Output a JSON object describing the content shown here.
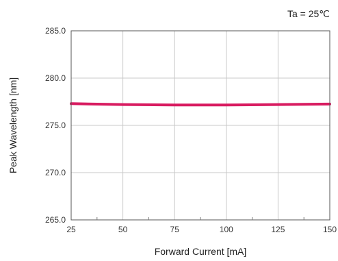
{
  "chart_data": {
    "type": "line",
    "title": "",
    "annotation": "Ta = 25℃",
    "xlabel": "Forward Current [mA]",
    "ylabel": "Peak Wavelength [nm]",
    "xlim": [
      25,
      150
    ],
    "ylim": [
      265.0,
      285.0
    ],
    "x_ticks": [
      25,
      50,
      75,
      100,
      125,
      150
    ],
    "x_tick_labels": [
      "25",
      "50",
      "75",
      "100",
      "125",
      "150"
    ],
    "y_ticks": [
      265.0,
      270.0,
      275.0,
      280.0,
      285.0
    ],
    "y_tick_labels": [
      "265.0",
      "270.0",
      "275.0",
      "280.0",
      "285.0"
    ],
    "grid": true,
    "legend": "none",
    "series": [
      {
        "color": "#d81b60",
        "x": [
          25,
          50,
          75,
          100,
          125,
          150
        ],
        "y": [
          277.3,
          277.2,
          277.15,
          277.15,
          277.2,
          277.25
        ]
      }
    ]
  }
}
